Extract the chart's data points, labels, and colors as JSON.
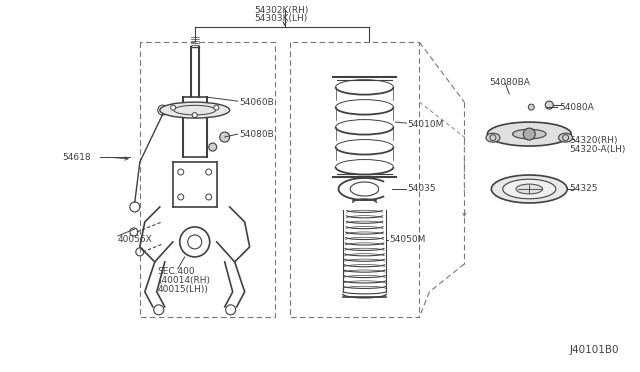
{
  "bg_color": "#ffffff",
  "line_color": "#404040",
  "part_labels": {
    "54302K_RH": "54302K(RH)",
    "54303K_LH": "54303K(LH)",
    "54060B": "54060B",
    "54080B": "54080B",
    "54080BA": "54080BA",
    "54080A": "54080A",
    "54010M": "54010M",
    "54035": "54035",
    "54050M": "54050M",
    "54320_RH": "54320(RH)",
    "54320A_LH": "54320-A(LH)",
    "54325": "54325",
    "54618": "54618",
    "40056X": "40056X",
    "SEC400": "SEC.400",
    "40014_RH": "(40014(RH)",
    "40015_LH": "40015(LH))",
    "J40101B0": "J40101B0"
  },
  "label_fontsize": 6.5
}
